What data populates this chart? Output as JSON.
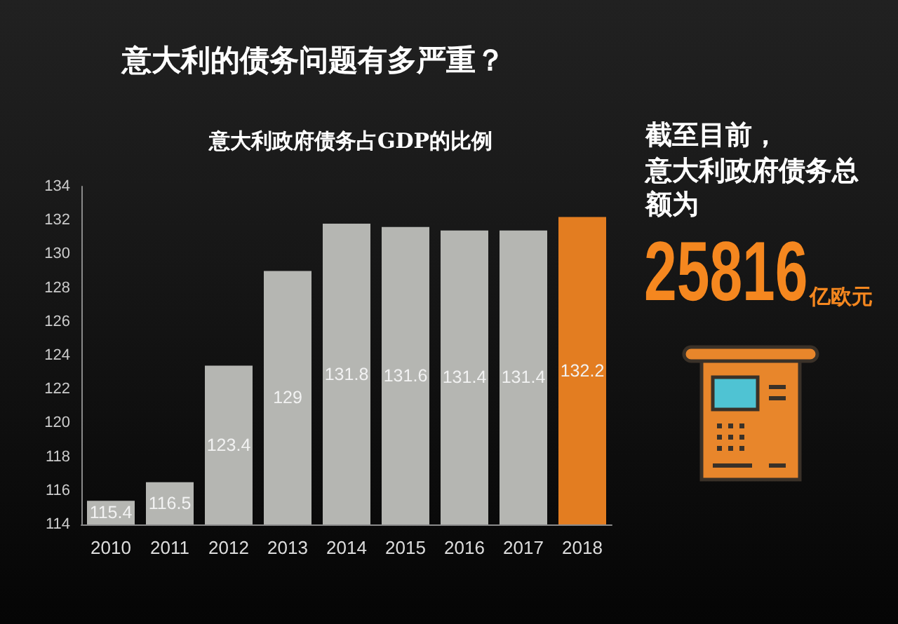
{
  "chart_data": {
    "type": "bar",
    "title": "意大利的债务问题有多严重？",
    "subtitle": "意大利政府债务占GDP的比例",
    "categories": [
      "2010",
      "2011",
      "2012",
      "2013",
      "2014",
      "2015",
      "2016",
      "2017",
      "2018"
    ],
    "values": [
      115.4,
      116.5,
      123.4,
      129,
      131.8,
      131.6,
      131.4,
      131.4,
      132.2
    ],
    "colors": [
      "#b5b6b2",
      "#b5b6b2",
      "#b5b6b2",
      "#b5b6b2",
      "#b5b6b2",
      "#b5b6b2",
      "#b5b6b2",
      "#b5b6b2",
      "#e37d21"
    ],
    "ylim": [
      114,
      134
    ],
    "yticks": [
      114,
      116,
      118,
      120,
      122,
      124,
      126,
      128,
      130,
      132,
      134
    ],
    "data_labels": true,
    "annotations": [
      "截至目前，",
      "意大利政府债务总额为",
      "25816",
      "亿欧元"
    ]
  }
}
